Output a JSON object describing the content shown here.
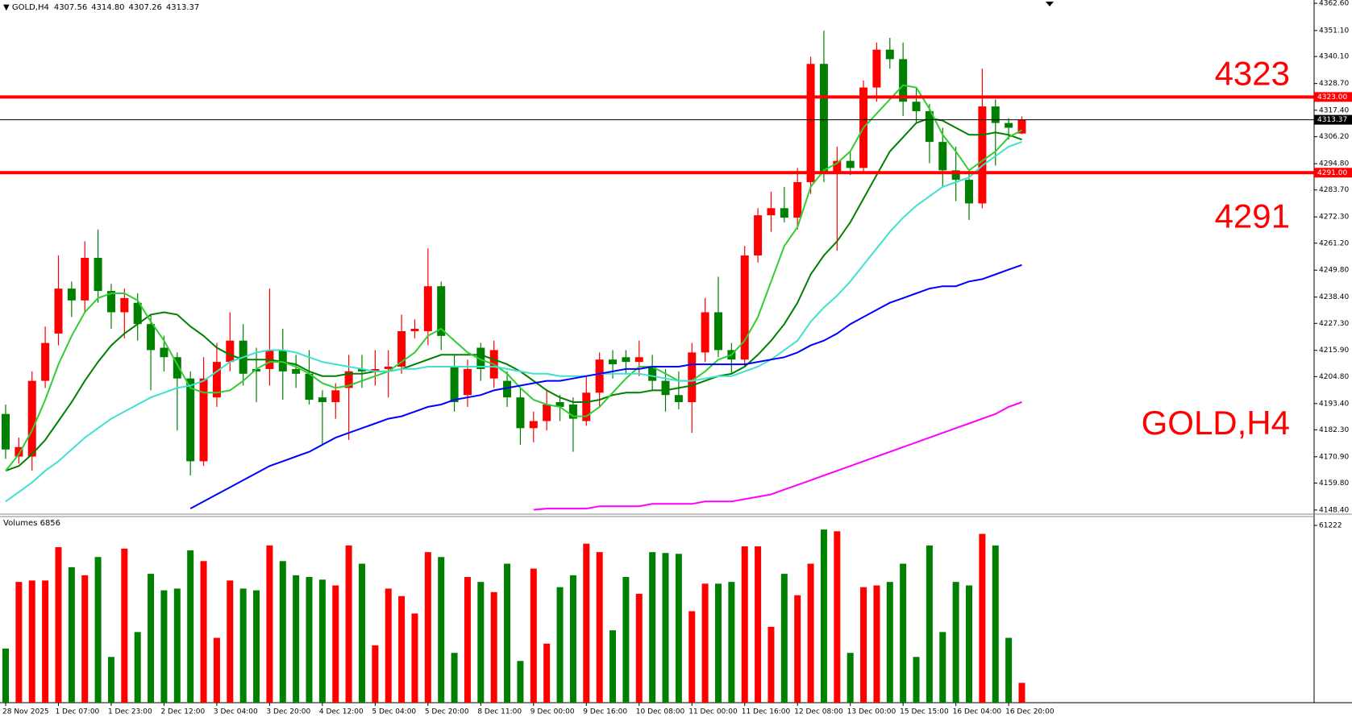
{
  "chart_data": {
    "type": "candlestick",
    "title": "GOLD,H4",
    "last_labels": [
      "4307.56",
      "4314.80",
      "4307.26",
      "4313.37"
    ],
    "categories": [
      "28 Nov 2025",
      null,
      null,
      null,
      "1 Dec 07:00",
      null,
      null,
      null,
      "1 Dec 23:00",
      null,
      null,
      null,
      "2 Dec 12:00",
      null,
      null,
      null,
      "3 Dec 04:00",
      null,
      null,
      null,
      "3 Dec 20:00",
      null,
      null,
      null,
      "4 Dec 12:00",
      null,
      null,
      null,
      "5 Dec 04:00",
      null,
      null,
      null,
      "5 Dec 20:00",
      null,
      null,
      null,
      "8 Dec 11:00",
      null,
      null,
      null,
      "9 Dec 00:00",
      null,
      null,
      null,
      "9 Dec 16:00",
      null,
      null,
      null,
      "10 Dec 08:00",
      null,
      null,
      null,
      "11 Dec 00:00",
      null,
      null,
      null,
      "11 Dec 16:00",
      null,
      null,
      null,
      "12 Dec 08:00",
      null,
      null,
      null,
      "13 Dec 00:00",
      null,
      null,
      null,
      "15 Dec 15:00",
      null,
      null,
      null,
      "16 Dec 04:00",
      null,
      null,
      null,
      "16 Dec 20:00",
      null
    ],
    "open": [
      4189,
      4171,
      4171,
      4203,
      4223,
      4242,
      4237,
      4255,
      4241,
      4232,
      4236,
      4227,
      4217,
      4213,
      4204,
      4169,
      4196,
      4211,
      4220,
      4208,
      4208,
      4216,
      4208,
      4206,
      4196,
      4194,
      4200,
      4208,
      4207,
      4208,
      4209,
      4224,
      4224,
      4243,
      4209,
      4197,
      4217,
      4204,
      4203,
      4196,
      4183,
      4186,
      4194,
      4193,
      4186,
      4198,
      4212,
      4213,
      4211,
      4209,
      4203,
      4197,
      4194,
      4215,
      4232,
      4216,
      4212,
      4256,
      4273,
      4276,
      4272,
      4287,
      4337,
      4291,
      4296,
      4293,
      4327,
      4343,
      4339,
      4321,
      4317,
      4304,
      4292,
      4288,
      4278,
      4319,
      4312,
      4307.56
    ],
    "high": [
      4193,
      4179,
      4207,
      4226,
      4256,
      4245,
      4262,
      4267,
      4244,
      4242,
      4240,
      4231,
      4222,
      4215,
      4207,
      4213,
      4219,
      4232,
      4227,
      4217,
      4242,
      4225,
      4214,
      4216,
      4199,
      4202,
      4214,
      4214,
      4216,
      4216,
      4231,
      4229,
      4259,
      4245,
      4214,
      4212,
      4219,
      4220,
      4207,
      4200,
      4190,
      4199,
      4197,
      4196,
      4205,
      4215,
      4216,
      4216,
      4220,
      4214,
      4208,
      4207,
      4219,
      4238,
      4247,
      4219,
      4260,
      4276,
      4283,
      4285,
      4293,
      4340,
      4351,
      4302,
      4300,
      4330,
      4346,
      4348,
      4346,
      4327,
      4320,
      4310,
      4302,
      4292,
      4335,
      4322,
      4314,
      4314.8
    ],
    "low": [
      4170,
      4168,
      4165,
      4200,
      4218,
      4230,
      4232,
      4236,
      4225,
      4221,
      4220,
      4199,
      4207,
      4182,
      4163,
      4167,
      4192,
      4207,
      4201,
      4194,
      4201,
      4195,
      4200,
      4193,
      4176,
      4187,
      4178,
      4200,
      4201,
      4196,
      4206,
      4221,
      4218,
      4216,
      4190,
      4192,
      4203,
      4200,
      4192,
      4176,
      4177,
      4182,
      4186,
      4173,
      4184,
      4192,
      4204,
      4206,
      4205,
      4199,
      4190,
      4191,
      4181,
      4211,
      4213,
      4206,
      4209,
      4253,
      4266,
      4270,
      4267,
      4282,
      4287,
      4258,
      4290,
      4291,
      4321,
      4335,
      4315,
      4312,
      4295,
      4285,
      4279,
      4271,
      4276,
      4294,
      4305,
      4307.26
    ],
    "close": [
      4174,
      4175,
      4203,
      4219,
      4242,
      4237,
      4255,
      4241,
      4232,
      4238,
      4227,
      4216,
      4213,
      4204,
      4169,
      4204,
      4211,
      4220,
      4206,
      4207,
      4216,
      4207,
      4206,
      4195,
      4194,
      4199,
      4207,
      4207,
      4208,
      4209,
      4224,
      4225,
      4243,
      4222,
      4194,
      4208,
      4208,
      4216,
      4196,
      4183,
      4186,
      4193,
      4192,
      4187,
      4198,
      4212,
      4210,
      4211,
      4213,
      4203,
      4197,
      4194,
      4215,
      4232,
      4216,
      4212,
      4256,
      4273,
      4276,
      4272,
      4287,
      4337,
      4291,
      4296,
      4293,
      4327,
      4343,
      4339,
      4321,
      4317,
      4304,
      4292,
      4288,
      4278,
      4319,
      4312,
      4310,
      4313.37
    ],
    "up_color": "#ff0000",
    "down_color": "#008000",
    "series": [
      {
        "color": "#008000",
        "values": [
          4165,
          4167,
          4172,
          4178,
          4186,
          4194,
          4203,
          4211,
          4218,
          4223,
          4227,
          4231,
          4232,
          4231,
          4226,
          4222,
          4217,
          4214,
          4212,
          4212,
          4212,
          4211,
          4210,
          4207,
          4205,
          4205,
          4206,
          4206,
          4207,
          4207,
          4208,
          4210,
          4212,
          4214,
          4214,
          4214,
          4214,
          4212,
          4210,
          4207,
          4203,
          4199,
          4196,
          4194,
          4194,
          4195,
          4197,
          4198,
          4198,
          4199,
          4199,
          4200,
          4201,
          4203,
          4205,
          4206,
          4209,
          4214,
          4220,
          4227,
          4236,
          4248,
          4256,
          4262,
          4270,
          4280,
          4290,
          4300,
          4306,
          4312,
          4314,
          4313,
          4310,
          4307,
          4307,
          4308,
          4307,
          4305
        ]
      },
      {
        "color": "#32cd32",
        "values": [
          4165,
          4172,
          4182,
          4195,
          4210,
          4222,
          4232,
          4238,
          4240,
          4240,
          4237,
          4228,
          4220,
          4210,
          4200,
          4198,
          4198,
          4199,
          4203,
          4208,
          4211,
          4211,
          4209,
          4206,
          4202,
          4200,
          4201,
          4203,
          4205,
          4207,
          4211,
          4215,
          4222,
          4225,
          4220,
          4215,
          4212,
          4210,
          4206,
          4200,
          4195,
          4193,
          4192,
          4188,
          4188,
          4192,
          4198,
          4204,
          4209,
          4209,
          4206,
          4203,
          4203,
          4207,
          4212,
          4214,
          4220,
          4230,
          4245,
          4260,
          4268,
          4285,
          4292,
          4295,
          4300,
          4310,
          4316,
          4322,
          4328,
          4327,
          4318,
          4307,
          4300,
          4292,
          4296,
          4300,
          4306,
          4309
        ]
      },
      {
        "color": "#40e0d0",
        "values": [
          4152,
          4156,
          4160,
          4165,
          4169,
          4174,
          4179,
          4183,
          4187,
          4190,
          4193,
          4196,
          4198,
          4200,
          4201,
          4203,
          4207,
          4211,
          4213,
          4215,
          4216,
          4216,
          4215,
          4213,
          4211,
          4210,
          4209,
          4208,
          4207,
          4207,
          4208,
          4208,
          4209,
          4209,
          4209,
          4209,
          4209,
          4209,
          4208,
          4207,
          4206,
          4206,
          4205,
          4205,
          4205,
          4206,
          4206,
          4206,
          4206,
          4205,
          4204,
          4203,
          4203,
          4204,
          4205,
          4205,
          4207,
          4209,
          4212,
          4216,
          4220,
          4228,
          4234,
          4239,
          4245,
          4252,
          4259,
          4266,
          4272,
          4277,
          4281,
          4285,
          4287,
          4289,
          4294,
          4298,
          4302,
          4304
        ]
      },
      {
        "color": "#0000ff",
        "values": [
          null,
          null,
          null,
          null,
          null,
          null,
          null,
          null,
          null,
          null,
          null,
          null,
          null,
          null,
          4149,
          4152,
          4155,
          4158,
          4161,
          4164,
          4167,
          4169,
          4171,
          4173,
          4176,
          4179,
          4181,
          4183,
          4185,
          4187,
          4188,
          4190,
          4192,
          4193,
          4195,
          4196,
          4197,
          4199,
          4200,
          4201,
          4202,
          4203,
          4203,
          4204,
          4205,
          4206,
          4207,
          4208,
          4208,
          4209,
          4209,
          4209,
          4210,
          4210,
          4210,
          4210,
          4210,
          4211,
          4212,
          4213,
          4215,
          4218,
          4220,
          4223,
          4227,
          4230,
          4233,
          4236,
          4238,
          4240,
          4242,
          4243,
          4243,
          4245,
          4246,
          4248,
          4250,
          4252
        ]
      },
      {
        "color": "#ff00ff",
        "values": [
          null,
          null,
          null,
          null,
          null,
          null,
          null,
          null,
          null,
          null,
          null,
          null,
          null,
          null,
          null,
          null,
          null,
          null,
          null,
          null,
          null,
          null,
          null,
          null,
          null,
          null,
          null,
          null,
          null,
          null,
          null,
          null,
          null,
          null,
          null,
          null,
          null,
          null,
          null,
          null,
          4148.5,
          4149,
          4149,
          4149,
          4149,
          4150,
          4150,
          4150,
          4150,
          4151,
          4151,
          4151,
          4151,
          4152,
          4152,
          4152,
          4153,
          4154,
          4155,
          4157,
          4159,
          4161,
          4163,
          4165,
          4167,
          4169,
          4171,
          4173,
          4175,
          4177,
          4179,
          4181,
          4183,
          4185,
          4187,
          4189,
          4192,
          4194
        ]
      }
    ],
    "levels": [
      {
        "value": 4323,
        "label": "4323.00",
        "color": "#ff0000"
      },
      {
        "value": 4291,
        "label": "4291.00",
        "color": "#ff0000"
      }
    ],
    "ylim": [
      4147,
      4364
    ],
    "yticks": [
      {
        "value": 4362.6,
        "label": "4362.60"
      },
      {
        "value": 4351.1,
        "label": "4351.10"
      },
      {
        "value": 4340.1,
        "label": "4340.10"
      },
      {
        "value": 4328.7,
        "label": "4328.70"
      },
      {
        "value": 4317.4,
        "label": "4317.40"
      },
      {
        "value": 4306.2,
        "label": "4306.20"
      },
      {
        "value": 4294.8,
        "label": "4294.80"
      },
      {
        "value": 4283.7,
        "label": "4283.70"
      },
      {
        "value": 4272.3,
        "label": "4272.30"
      },
      {
        "value": 4261.2,
        "label": "4261.20"
      },
      {
        "value": 4249.8,
        "label": "4249.80"
      },
      {
        "value": 4238.4,
        "label": "4238.40"
      },
      {
        "value": 4227.3,
        "label": "4227.30"
      },
      {
        "value": 4215.9,
        "label": "4215.90"
      },
      {
        "value": 4204.8,
        "label": "4204.80"
      },
      {
        "value": 4193.4,
        "label": "4193.40"
      },
      {
        "value": 4182.3,
        "label": "4182.30"
      },
      {
        "value": 4170.9,
        "label": "4170.90"
      },
      {
        "value": 4159.8,
        "label": "4159.80"
      },
      {
        "value": 4148.4,
        "label": "4148.40"
      }
    ],
    "volume": {
      "title": "Volumes 6856",
      "ylim": [
        0,
        61222
      ],
      "yticks": [
        61222
      ],
      "values": [
        18700,
        41700,
        42200,
        42200,
        53700,
        46800,
        44000,
        50300,
        15800,
        53200,
        24400,
        44500,
        38800,
        39400,
        52600,
        48900,
        22400,
        42200,
        39400,
        38800,
        54300,
        48900,
        44000,
        43400,
        42500,
        40500,
        54300,
        48000,
        19800,
        39400,
        36800,
        30800,
        52000,
        50300,
        17200,
        43400,
        41700,
        38200,
        48000,
        14400,
        46300,
        20400,
        39900,
        44000,
        54900,
        52000,
        25000,
        43400,
        37600,
        52000,
        51700,
        51400,
        31600,
        41100,
        41100,
        41700,
        54000,
        54000,
        26200,
        44500,
        37100,
        48000,
        59800,
        59200,
        17200,
        39900,
        40500,
        41700,
        48000,
        15800,
        54300,
        24400,
        41700,
        40500,
        58300,
        54300,
        22400,
        6856
      ]
    }
  }
}
